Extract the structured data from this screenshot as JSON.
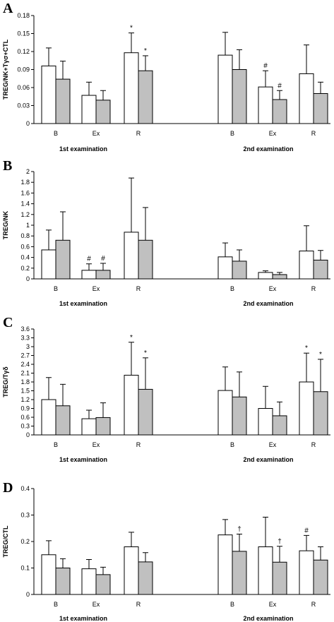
{
  "chart_data": [
    {
      "type": "bar",
      "title": "A",
      "ylabel": "TREG/NK+Tγσ+CTL",
      "ylim": [
        0,
        0.18
      ],
      "yticks": [
        "0",
        "0.03",
        "0.06",
        "0.09",
        "0.12",
        "0.15",
        "0.18"
      ],
      "groups": [
        "1st examination",
        "2nd examination"
      ],
      "categories": [
        "B",
        "Ex",
        "R",
        "B",
        "Ex",
        "R"
      ],
      "series": [
        {
          "color": "#ffffff",
          "values": [
            0.096,
            0.047,
            0.118,
            0.114,
            0.061,
            0.083
          ],
          "errors": [
            0.03,
            0.022,
            0.033,
            0.038,
            0.027,
            0.048
          ],
          "annotations": [
            "",
            "",
            "*",
            "",
            "#",
            ""
          ]
        },
        {
          "color": "#c0c0c0",
          "values": [
            0.074,
            0.039,
            0.088,
            0.09,
            0.04,
            0.05
          ],
          "errors": [
            0.03,
            0.016,
            0.025,
            0.033,
            0.015,
            0.019
          ],
          "annotations": [
            "",
            "",
            "*",
            "",
            "#",
            ""
          ]
        }
      ]
    },
    {
      "type": "bar",
      "title": "B",
      "ylabel": "TREG/NK",
      "ylim": [
        0,
        2
      ],
      "yticks": [
        "0",
        "0.2",
        "0.4",
        "0.6",
        "0.8",
        "1",
        "1.2",
        "1.4",
        "1.6",
        "1.8",
        "2"
      ],
      "groups": [
        "1st examination",
        "2nd examination"
      ],
      "categories": [
        "B",
        "Ex",
        "R",
        "B",
        "Ex",
        "R"
      ],
      "series": [
        {
          "color": "#ffffff",
          "values": [
            0.54,
            0.16,
            0.87,
            0.41,
            0.12,
            0.52
          ],
          "errors": [
            0.37,
            0.12,
            1.01,
            0.26,
            0.03,
            0.47
          ],
          "annotations": [
            "",
            "#",
            "",
            "",
            "",
            ""
          ]
        },
        {
          "color": "#c0c0c0",
          "values": [
            0.72,
            0.16,
            0.72,
            0.33,
            0.08,
            0.35
          ],
          "errors": [
            0.53,
            0.13,
            0.61,
            0.21,
            0.04,
            0.18
          ],
          "annotations": [
            "",
            "#",
            "",
            "",
            "",
            ""
          ]
        }
      ]
    },
    {
      "type": "bar",
      "title": "C",
      "ylabel": "TREG/Tγδ",
      "ylim": [
        0,
        3.6
      ],
      "yticks": [
        "0",
        "0.3",
        "0.6",
        "0.9",
        "1.2",
        "1.5",
        "1.8",
        "2.1",
        "2.4",
        "2.7",
        "3",
        "3.3",
        "3.6"
      ],
      "groups": [
        "1st examination",
        "2nd examination"
      ],
      "categories": [
        "B",
        "Ex",
        "R",
        "B",
        "Ex",
        "R"
      ],
      "series": [
        {
          "color": "#ffffff",
          "values": [
            1.2,
            0.55,
            2.03,
            1.51,
            0.9,
            1.8
          ],
          "errors": [
            0.75,
            0.29,
            1.12,
            0.8,
            0.75,
            0.98
          ],
          "annotations": [
            "",
            "",
            "*",
            "",
            "",
            "*"
          ]
        },
        {
          "color": "#c0c0c0",
          "values": [
            0.99,
            0.59,
            1.55,
            1.29,
            0.65,
            1.47
          ],
          "errors": [
            0.73,
            0.5,
            1.07,
            0.85,
            0.47,
            1.1
          ],
          "annotations": [
            "",
            "",
            "*",
            "",
            "",
            "*"
          ]
        }
      ]
    },
    {
      "type": "bar",
      "title": "D",
      "ylabel": "TREG/CTL",
      "ylim": [
        0,
        0.4
      ],
      "yticks": [
        "0",
        "0.1",
        "0.2",
        "0.3",
        "0.4"
      ],
      "groups": [
        "1st examination",
        "2nd examination"
      ],
      "categories": [
        "B",
        "Ex",
        "R",
        "B",
        "Ex",
        "R"
      ],
      "series": [
        {
          "color": "#ffffff",
          "values": [
            0.15,
            0.097,
            0.18,
            0.225,
            0.18,
            0.165
          ],
          "errors": [
            0.053,
            0.035,
            0.055,
            0.058,
            0.112,
            0.058
          ],
          "annotations": [
            "",
            "",
            "",
            "",
            "",
            "#"
          ]
        },
        {
          "color": "#c0c0c0",
          "values": [
            0.1,
            0.075,
            0.123,
            0.163,
            0.122,
            0.13
          ],
          "errors": [
            0.035,
            0.028,
            0.035,
            0.065,
            0.06,
            0.05
          ],
          "annotations": [
            "",
            "",
            "",
            "†",
            "†",
            ""
          ]
        }
      ]
    }
  ]
}
